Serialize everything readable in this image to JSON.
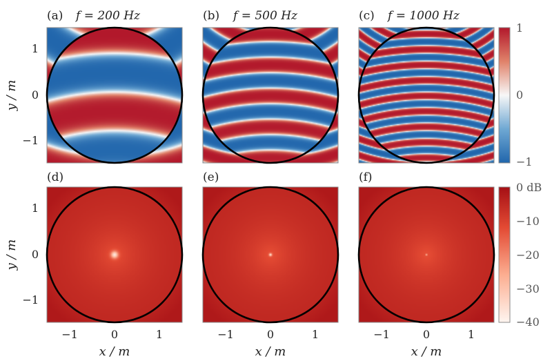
{
  "colors": {
    "diverging_low": "#2166ac",
    "diverging_mid": "#f7f7f7",
    "diverging_high": "#b2182b",
    "level_low": "#fff5f0",
    "level_high": "#a50f15",
    "circle": "#000000"
  },
  "chart_data": [
    {
      "type": "heatmap",
      "label": "(a)",
      "formula": "f = 200 Hz",
      "quantity": "field",
      "xlim": [
        -1.5,
        1.5
      ],
      "ylim": [
        -1.5,
        1.5
      ],
      "ylabel": "y / m",
      "xlabel": "",
      "yticks": [
        -1,
        0,
        1
      ],
      "ytick_labels": [
        "−1",
        "0",
        "1"
      ],
      "circle_radius": 1.5
    },
    {
      "type": "heatmap",
      "label": "(b)",
      "formula": "f = 500 Hz",
      "quantity": "field",
      "xlim": [
        -1.5,
        1.5
      ],
      "ylim": [
        -1.5,
        1.5
      ],
      "circle_radius": 1.5
    },
    {
      "type": "heatmap",
      "label": "(c)",
      "formula": "f = 1000 Hz",
      "quantity": "field",
      "xlim": [
        -1.5,
        1.5
      ],
      "ylim": [
        -1.5,
        1.5
      ],
      "circle_radius": 1.5
    },
    {
      "type": "heatmap",
      "label": "(d)",
      "quantity": "level",
      "xlim": [
        -1.5,
        1.5
      ],
      "ylim": [
        -1.5,
        1.5
      ],
      "ylabel": "y / m",
      "xlabel": "x / m",
      "xticks": [
        -1,
        0,
        1
      ],
      "xtick_labels": [
        "−1",
        "0",
        "1"
      ],
      "yticks": [
        -1,
        0,
        1
      ],
      "ytick_labels": [
        "−1",
        "0",
        "1"
      ],
      "circle_radius": 1.5
    },
    {
      "type": "heatmap",
      "label": "(e)",
      "quantity": "level",
      "xlim": [
        -1.5,
        1.5
      ],
      "ylim": [
        -1.5,
        1.5
      ],
      "xlabel": "x / m",
      "xticks": [
        -1,
        0,
        1
      ],
      "xtick_labels": [
        "−1",
        "0",
        "1"
      ],
      "circle_radius": 1.5
    },
    {
      "type": "heatmap",
      "label": "(f)",
      "quantity": "level",
      "xlim": [
        -1.5,
        1.5
      ],
      "ylim": [
        -1.5,
        1.5
      ],
      "xlabel": "x / m",
      "xticks": [
        -1,
        0,
        1
      ],
      "xtick_labels": [
        "−1",
        "0",
        "1"
      ],
      "circle_radius": 1.5
    }
  ],
  "colorbars": [
    {
      "range": [
        -1,
        1
      ],
      "ticks": [
        1,
        0,
        -1
      ],
      "tick_labels": [
        "1",
        "0",
        "−1"
      ],
      "colormap": "diverging"
    },
    {
      "range": [
        -40,
        0
      ],
      "ticks": [
        0,
        -10,
        -20,
        -30,
        -40
      ],
      "tick_labels": [
        "0 dB",
        "−10",
        "−20",
        "−30",
        "−40"
      ],
      "colormap": "level"
    }
  ]
}
